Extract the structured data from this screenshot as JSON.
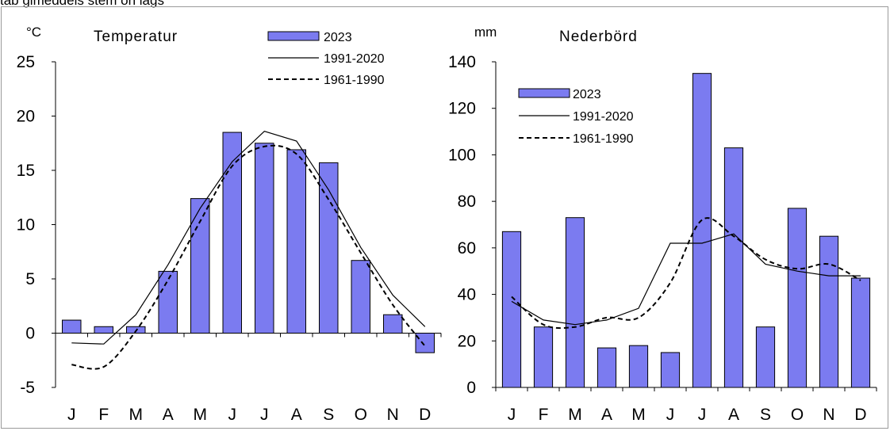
{
  "caption": "tab gimeddels stem on lags",
  "chart_data": [
    {
      "type": "bar",
      "title": "Temperatur",
      "ylabel": "°C",
      "categories": [
        "J",
        "F",
        "M",
        "A",
        "M",
        "J",
        "J",
        "A",
        "S",
        "O",
        "N",
        "D"
      ],
      "ylim": [
        -5,
        25
      ],
      "yticks": [
        -5,
        0,
        5,
        10,
        15,
        20,
        25
      ],
      "series": [
        {
          "name": "2023",
          "kind": "bar",
          "values": [
            1.2,
            0.6,
            0.6,
            5.7,
            12.4,
            18.5,
            17.5,
            16.9,
            15.7,
            6.7,
            1.7,
            -1.8
          ]
        },
        {
          "name": "1991-2020",
          "kind": "line-solid",
          "values": [
            -0.9,
            -1.0,
            1.7,
            6.3,
            11.5,
            15.8,
            18.6,
            17.7,
            13.2,
            7.9,
            3.5,
            0.6
          ]
        },
        {
          "name": "1961-1990",
          "kind": "line-dashed",
          "values": [
            -2.9,
            -3.1,
            0.2,
            4.9,
            10.3,
            15.4,
            17.2,
            16.5,
            12.3,
            7.4,
            2.6,
            -1.2
          ]
        }
      ],
      "bar_color": "#7b7bf0",
      "legend": "top-right",
      "grid": false
    },
    {
      "type": "bar",
      "title": "Nederbörd",
      "ylabel": "mm",
      "categories": [
        "J",
        "F",
        "M",
        "A",
        "M",
        "J",
        "J",
        "A",
        "S",
        "O",
        "N",
        "D"
      ],
      "ylim": [
        0,
        140
      ],
      "yticks": [
        0,
        20,
        40,
        60,
        80,
        100,
        120,
        140
      ],
      "series": [
        {
          "name": "2023",
          "kind": "bar",
          "values": [
            67,
            26,
            73,
            17,
            18,
            15,
            135,
            103,
            26,
            77,
            65,
            47
          ]
        },
        {
          "name": "1991-2020",
          "kind": "line-solid",
          "values": [
            37,
            29,
            27,
            29,
            34,
            62,
            62,
            66,
            53,
            50,
            48,
            48
          ]
        },
        {
          "name": "1961-1990",
          "kind": "line-dashed",
          "values": [
            39,
            27,
            26,
            30,
            30,
            45,
            72,
            65,
            55,
            51,
            53,
            46
          ]
        }
      ],
      "bar_color": "#7b7bf0",
      "legend": "top-left",
      "grid": false
    }
  ]
}
